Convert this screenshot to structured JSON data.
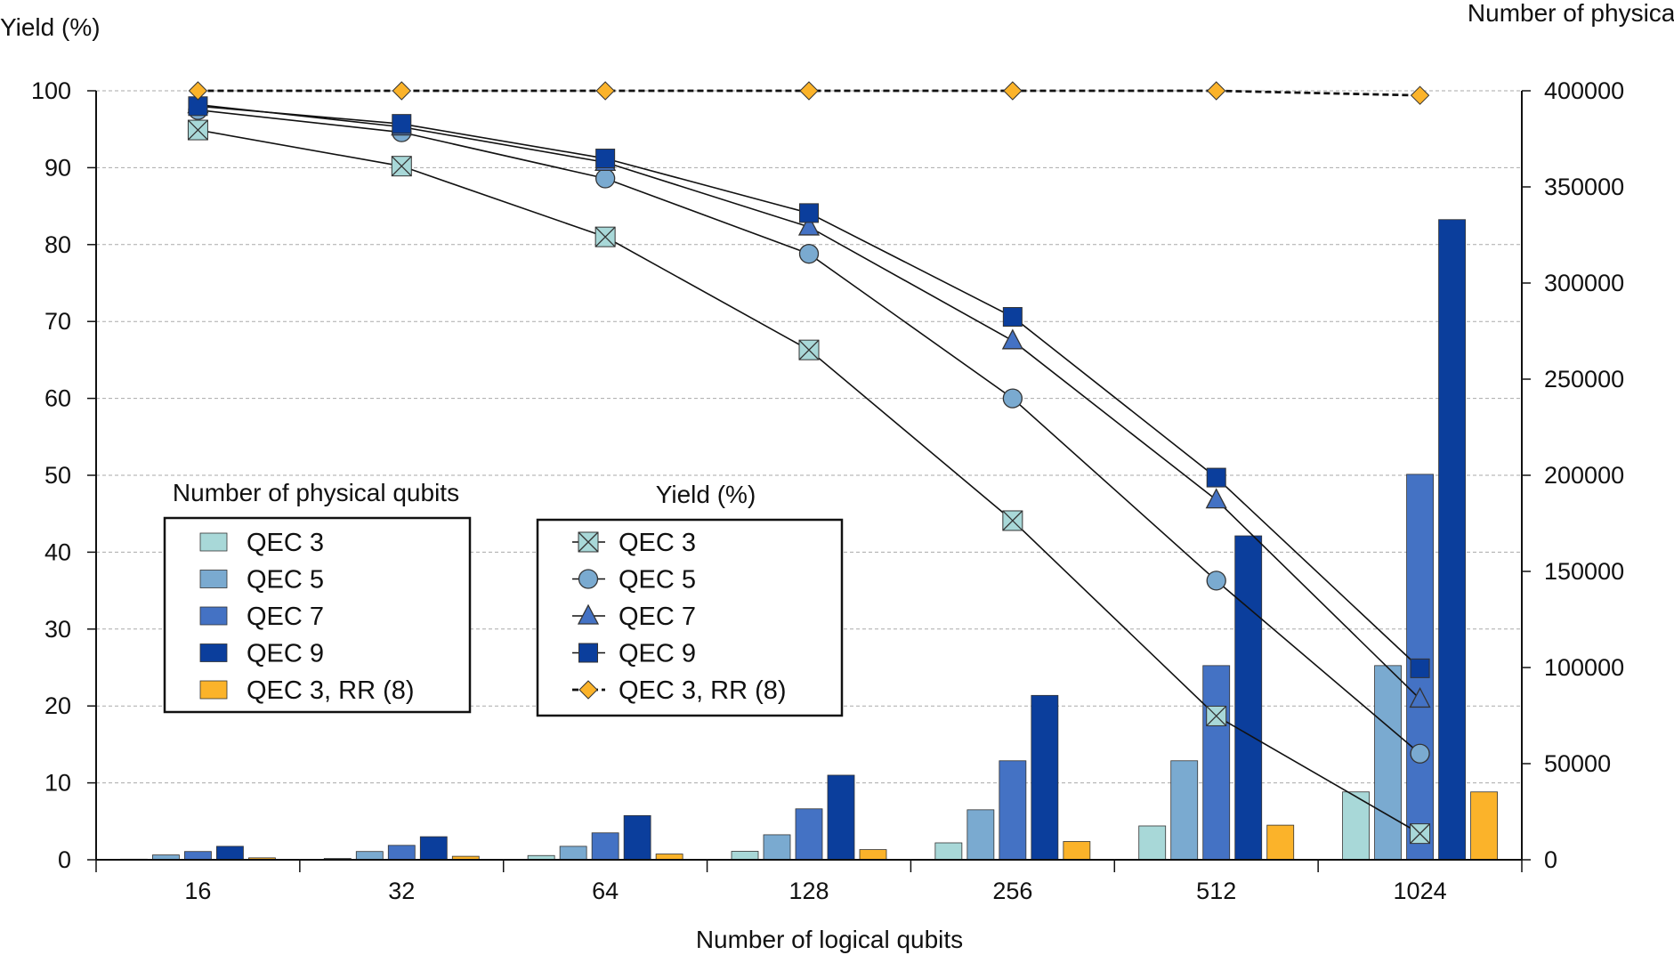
{
  "chart_data": {
    "type": "bar+line",
    "xlabel": "Number of logical qubits",
    "ylabel_left": "Yield (%)",
    "ylabel_right": "Number of physical qubits",
    "categories": [
      "16",
      "32",
      "64",
      "128",
      "256",
      "512",
      "1024"
    ],
    "ylim_left": [
      0,
      100
    ],
    "yticks_left": [
      "0",
      "10",
      "20",
      "30",
      "40",
      "50",
      "60",
      "70",
      "80",
      "90",
      "100"
    ],
    "ylim_right": [
      0,
      400000
    ],
    "yticks_right": [
      "0",
      "50000",
      "100000",
      "150000",
      "200000",
      "250000",
      "300000",
      "350000",
      "400000"
    ],
    "grid": "horizontal dashed",
    "bar_legend_title": "Number of physical qubits",
    "line_legend_title": "Yield (%)",
    "bar_series": [
      {
        "name": "QEC 3",
        "color": "#a8d8d8",
        "values": [
          320,
          700,
          2200,
          4400,
          8800,
          17600,
          35300
        ]
      },
      {
        "name": "QEC 5",
        "color": "#7aaad0",
        "values": [
          2500,
          4300,
          7000,
          13000,
          26000,
          51500,
          101000
        ]
      },
      {
        "name": "QEC 7",
        "color": "#4472c4",
        "values": [
          4300,
          7500,
          14000,
          26500,
          51500,
          101000,
          200500
        ]
      },
      {
        "name": "QEC 9",
        "color": "#0b3e9c",
        "values": [
          7000,
          12000,
          23000,
          44000,
          85500,
          168500,
          333000
        ]
      },
      {
        "name": "QEC 3, RR (8)",
        "color": "#fbb32a",
        "values": [
          1000,
          1800,
          3000,
          5300,
          9500,
          18000,
          35300
        ]
      }
    ],
    "line_series": [
      {
        "name": "QEC 3",
        "marker": "x-square",
        "color": "#a8d8d8",
        "values": [
          94.9,
          90.2,
          81.0,
          66.3,
          44.1,
          18.7,
          3.4
        ]
      },
      {
        "name": "QEC 5",
        "marker": "circle",
        "color": "#7aaad0",
        "values": [
          97.5,
          94.6,
          88.6,
          78.8,
          60.0,
          36.3,
          13.8
        ]
      },
      {
        "name": "QEC 7",
        "marker": "triangle",
        "color": "#4472c4",
        "values": [
          98.2,
          95.3,
          90.7,
          82.3,
          67.5,
          46.8,
          20.9
        ]
      },
      {
        "name": "QEC 9",
        "marker": "square",
        "color": "#0b3e9c",
        "values": [
          98.0,
          95.7,
          91.2,
          84.1,
          70.6,
          49.7,
          24.9
        ]
      },
      {
        "name": "QEC 3, RR (8)",
        "marker": "diamond",
        "color": "#fbb32a",
        "dashed": true,
        "values": [
          100,
          100,
          100,
          100,
          100,
          100,
          99.4
        ]
      }
    ]
  }
}
